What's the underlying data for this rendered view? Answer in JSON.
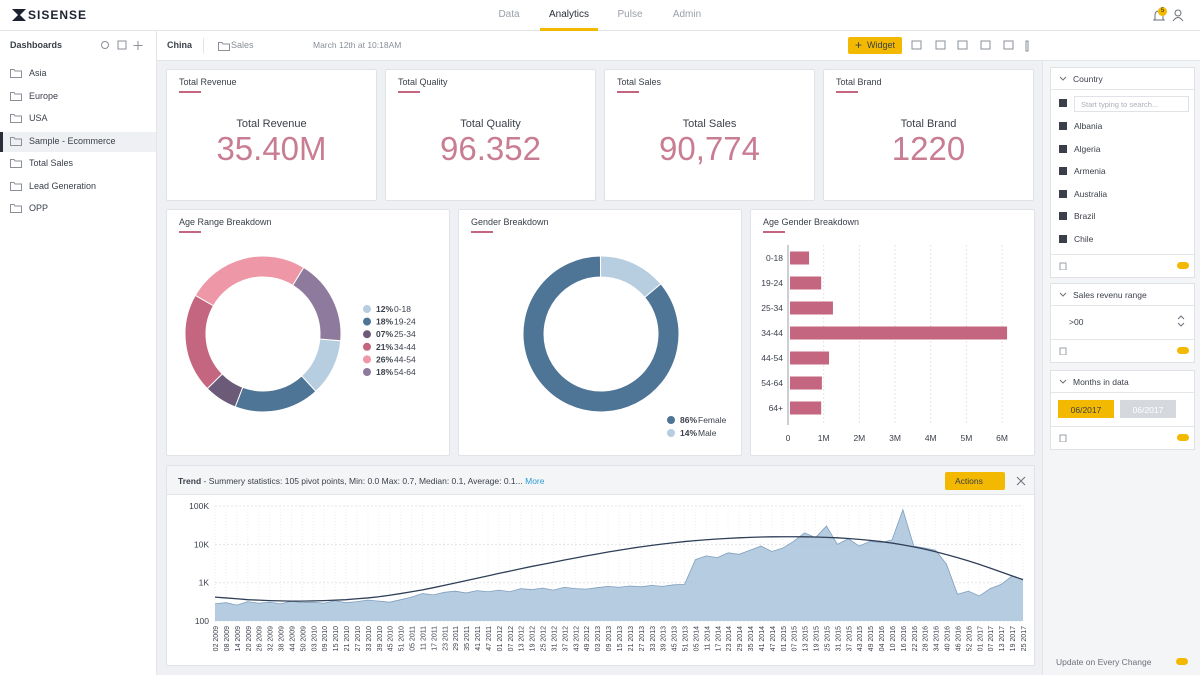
{
  "nav": {
    "logo": "SISENSE",
    "tabs": [
      "Data",
      "Analytics",
      "Pulse",
      "Admin"
    ],
    "active_tab": 1,
    "badge": "5"
  },
  "sidebar": {
    "title": "Dashboards",
    "items": [
      "Asia",
      "Europe",
      "USA",
      "Sample - Ecommerce",
      "Total Sales",
      "Lead Generation",
      "OPP"
    ],
    "active_item": 3
  },
  "toolbar": {
    "dashboard": "China",
    "folder": "Sales",
    "timestamp": "March 12th at 10:18AM",
    "widget_button": "Widget"
  },
  "kpis": [
    {
      "title": "Total Revenue",
      "label": "Total Revenue",
      "value": "35.40M"
    },
    {
      "title": "Total Quality",
      "label": "Total Quality",
      "value": "96.352"
    },
    {
      "title": "Total Sales",
      "label": "Total Sales",
      "value": "90,774"
    },
    {
      "title": "Total Brand",
      "label": "Total Brand",
      "value": "1220"
    }
  ],
  "chart_data": [
    {
      "type": "pie",
      "title": "Age Range Breakdown",
      "categories": [
        "0-18",
        "19-24",
        "25-34",
        "34-44",
        "44-54",
        "54-64"
      ],
      "values": [
        12,
        18,
        7,
        21,
        26,
        18
      ],
      "value_labels": [
        "12%",
        "18%",
        "07%",
        "21%",
        "26%",
        "18%"
      ],
      "colors": [
        "#b7cde0",
        "#4e7496",
        "#6b5a78",
        "#c4667f",
        "#ee97a6",
        "#8e7a9c"
      ]
    },
    {
      "type": "pie",
      "title": "Gender Breakdown",
      "categories": [
        "Female",
        "Male"
      ],
      "values": [
        86,
        14
      ],
      "value_labels": [
        "86%",
        "14%"
      ],
      "colors": [
        "#4e7496",
        "#b7cde0"
      ]
    },
    {
      "type": "bar",
      "title": "Age Gender Breakdown",
      "categories": [
        "0-18",
        "19-24",
        "25-34",
        "34-44",
        "44-54",
        "54-64",
        "64+"
      ],
      "values": [
        590000,
        930000,
        1260000,
        6140000,
        1150000,
        950000,
        930000
      ],
      "color": "#c4667f",
      "xlim": [
        0,
        6250000
      ],
      "xticks": [
        0,
        {
          "value": 1000000,
          "label": "1M"
        },
        {
          "value": 2000000,
          "label": "2M"
        },
        {
          "value": 3000000,
          "label": "3M"
        },
        {
          "value": 4000000,
          "label": "4M"
        },
        {
          "value": 5000000,
          "label": "5M"
        },
        {
          "value": 6000000,
          "label": "6M"
        }
      ],
      "grid": true
    },
    {
      "type": "area",
      "title": "Trend",
      "subtitle": "- Summery statistics: 105 pivot points, Min: 0.0 Max: 0.7, Median: 0.1, Average: 0.1...",
      "link": "More",
      "actions": "Actions",
      "categories": [
        "02 2009",
        "08 2009",
        "14 2009",
        "20 2009",
        "26 2009",
        "32 2009",
        "38 2009",
        "44 2009",
        "50 2009",
        "03 2010",
        "09 2010",
        "15 2010",
        "21 2010",
        "27 2010",
        "33 2010",
        "39 2010",
        "45 2010",
        "51 2010",
        "05 2011",
        "11 2011",
        "17 2011",
        "23 2011",
        "29 2011",
        "35 2011",
        "41 2011",
        "47 2011",
        "01 2012",
        "07 2012",
        "13 2012",
        "19 2012",
        "25 2012",
        "31 2012",
        "37 2012",
        "43 2012",
        "49 2012",
        "03 2013",
        "09 2013",
        "15 2013",
        "21 2013",
        "27 2013",
        "33 2013",
        "39 2013",
        "45 2013",
        "51 2013",
        "05 2014",
        "11 2014",
        "17 2014",
        "23 2014",
        "29 2014",
        "35 2014",
        "41 2014",
        "47 2014",
        "01 2015",
        "07 2015",
        "13 2015",
        "19 2015",
        "25 2015",
        "31 2015",
        "37 2015",
        "43 2015",
        "49 2015",
        "04 2016",
        "10 2016",
        "16 2016",
        "22 2016",
        "28 2016",
        "34 2016",
        "40 2016",
        "46 2016",
        "52 2016",
        "01 2017",
        "07 2017",
        "13 2017",
        "19 2017",
        "25 2017"
      ],
      "values": [
        280,
        300,
        260,
        320,
        290,
        310,
        280,
        330,
        300,
        310,
        290,
        340,
        300,
        320,
        350,
        330,
        310,
        360,
        420,
        520,
        480,
        560,
        600,
        540,
        620,
        580,
        640,
        580,
        700,
        660,
        720,
        640,
        760,
        700,
        680,
        740,
        800,
        760,
        820,
        780,
        850,
        800,
        880,
        900,
        4000,
        5000,
        4500,
        6000,
        5500,
        7000,
        9000,
        6500,
        8000,
        12000,
        20000,
        15000,
        30000,
        10000,
        14000,
        9000,
        12000,
        11000,
        13000,
        80000,
        9000,
        8000,
        7000,
        3000,
        500,
        600,
        450,
        700,
        900,
        1500,
        1200
      ],
      "trend": [
        420,
        400,
        380,
        360,
        350,
        340,
        335,
        330,
        330,
        335,
        340,
        350,
        360,
        380,
        400,
        430,
        470,
        520,
        580,
        650,
        740,
        850,
        980,
        1130,
        1300,
        1500,
        1750,
        2000,
        2300,
        2650,
        3000,
        3400,
        3900,
        4400,
        5000,
        5600,
        6300,
        7000,
        7800,
        8600,
        9400,
        10200,
        11000,
        11800,
        12500,
        13200,
        13800,
        14300,
        14800,
        15200,
        15500,
        15700,
        15800,
        15800,
        15700,
        15500,
        15200,
        14800,
        14200,
        13500,
        12700,
        11800,
        10800,
        9700,
        8600,
        7500,
        6400,
        5400,
        4500,
        3700,
        3000,
        2400,
        1900,
        1500,
        1200
      ],
      "color": "#a9c3da",
      "line_color": "#2e3f57",
      "log_scale": true,
      "ylim": [
        100,
        100000
      ],
      "yticks": [
        100,
        {
          "value": 1000,
          "label": "1K"
        },
        {
          "value": 10000,
          "label": "10K"
        },
        {
          "value": 100000,
          "label": "100K"
        }
      ],
      "grid": true
    }
  ],
  "filters": {
    "country": {
      "title": "Country",
      "search_placeholder": "Start typing to search...",
      "items": [
        "Albania",
        "Algeria",
        "Armenia",
        "Australia",
        "Brazil",
        "Chile"
      ]
    },
    "revenue": {
      "title": "Sales revenu range",
      "value": ">00"
    },
    "months": {
      "title": "Months in data",
      "from": "06/2017",
      "to": "06/2017"
    },
    "update": "Update on Every Change"
  }
}
